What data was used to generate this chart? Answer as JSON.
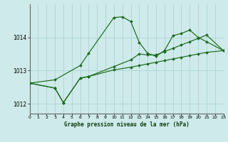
{
  "title": "Graphe pression niveau de la mer (hPa)",
  "bg_color": "#ceeaea",
  "line_color": "#1a6b1a",
  "grid_color": "#aacfcf",
  "xlim": [
    0,
    23
  ],
  "ylim": [
    1011.7,
    1015.0
  ],
  "yticks": [
    1012,
    1013,
    1014
  ],
  "xticks": [
    0,
    1,
    2,
    3,
    4,
    5,
    6,
    7,
    8,
    9,
    10,
    11,
    12,
    13,
    14,
    15,
    16,
    17,
    18,
    19,
    20,
    21,
    22,
    23
  ],
  "series": [
    {
      "x": [
        0,
        3,
        6,
        7,
        10,
        11,
        12,
        13,
        14,
        15,
        16,
        17,
        18,
        19,
        20,
        21,
        23
      ],
      "y": [
        1012.62,
        1012.72,
        1013.15,
        1013.52,
        1014.6,
        1014.62,
        1014.48,
        1013.85,
        1013.52,
        1013.43,
        1013.6,
        1014.05,
        1014.12,
        1014.22,
        1014.0,
        1013.87,
        1013.6
      ]
    },
    {
      "x": [
        0,
        3,
        4,
        6,
        7,
        10,
        12,
        13,
        14,
        15,
        16,
        17,
        18,
        19,
        20,
        21,
        23
      ],
      "y": [
        1012.62,
        1012.47,
        1012.03,
        1012.77,
        1012.82,
        1013.12,
        1013.32,
        1013.5,
        1013.47,
        1013.47,
        1013.57,
        1013.67,
        1013.77,
        1013.87,
        1013.97,
        1014.07,
        1013.6
      ]
    },
    {
      "x": [
        0,
        3,
        4,
        6,
        7,
        10,
        12,
        13,
        14,
        15,
        16,
        17,
        18,
        19,
        20,
        21,
        23
      ],
      "y": [
        1012.62,
        1012.47,
        1012.03,
        1012.77,
        1012.82,
        1013.02,
        1013.1,
        1013.15,
        1013.2,
        1013.25,
        1013.3,
        1013.35,
        1013.4,
        1013.45,
        1013.5,
        1013.55,
        1013.6
      ]
    }
  ]
}
